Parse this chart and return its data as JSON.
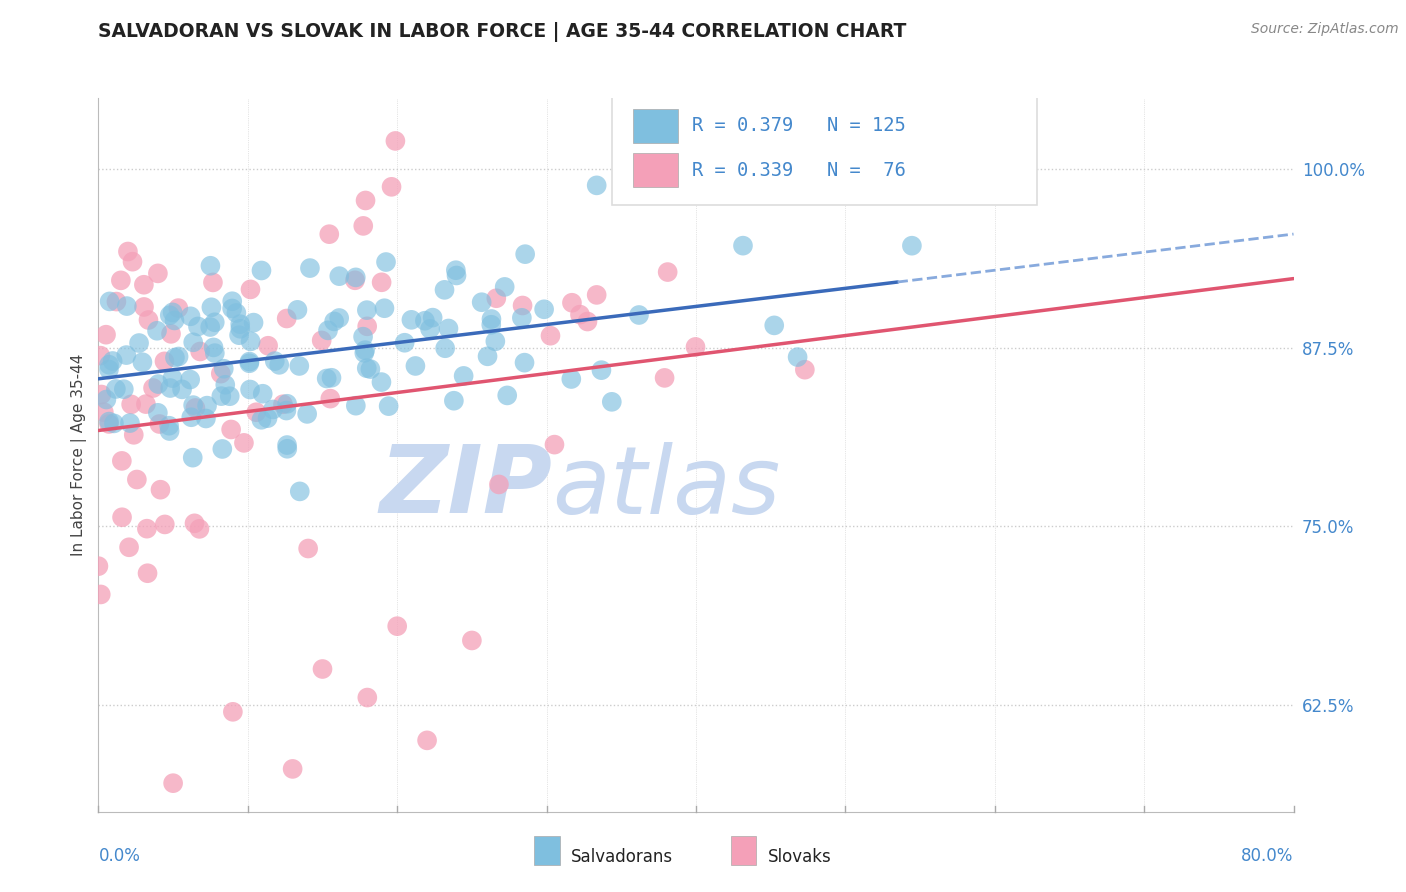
{
  "title": "SALVADORAN VS SLOVAK IN LABOR FORCE | AGE 35-44 CORRELATION CHART",
  "source_text": "Source: ZipAtlas.com",
  "ylabel": "In Labor Force | Age 35-44",
  "ylabel_right_labels": [
    "62.5%",
    "75.0%",
    "87.5%",
    "100.0%"
  ],
  "ylabel_right_values": [
    0.625,
    0.75,
    0.875,
    1.0
  ],
  "xlim": [
    0.0,
    0.8
  ],
  "ylim": [
    0.55,
    1.05
  ],
  "legend_R1": "R = 0.379",
  "legend_N1": "N = 125",
  "legend_R2": "R = 0.339",
  "legend_N2": "N =  76",
  "blue_color": "#7fbfdf",
  "pink_color": "#f4a0b8",
  "blue_line_color": "#3a6aba",
  "pink_line_color": "#e05570",
  "dashed_line_color": "#88aadd",
  "watermark_zip": "ZIP",
  "watermark_atlas": "atlas",
  "watermark_color": "#c8d8f0",
  "background_color": "#ffffff",
  "title_color": "#222222",
  "axis_label_color": "#4488cc",
  "gridline_color": "#cccccc",
  "n_blue": 125,
  "n_pink": 76,
  "r_blue": 0.379,
  "r_pink": 0.339,
  "blue_line_x_end": 0.535,
  "dashed_line_x_start": 0.535,
  "dashed_line_x_end": 0.8,
  "pink_line_x_end": 0.8
}
